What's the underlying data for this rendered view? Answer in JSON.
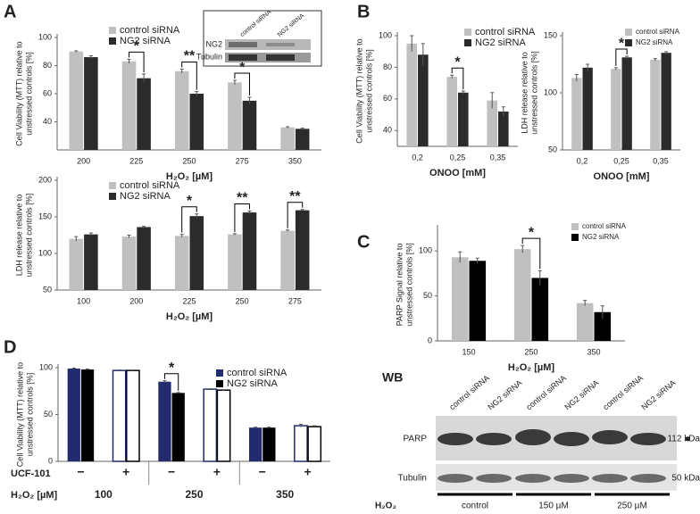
{
  "panels": [
    "A",
    "B",
    "C",
    "D"
  ],
  "inset_blot": {
    "lanes": [
      "control siRNA",
      "NG2 siRNA"
    ],
    "bands": [
      "NG2",
      "Tubulin"
    ]
  },
  "western_blot": {
    "title": "WB",
    "lanes": [
      "control siRNA",
      "NG2 siRNA",
      "control siRNA",
      "NG2 siRNA",
      "control siRNA",
      "NG2 siRNA"
    ],
    "bands": [
      "PARP",
      "Tubulin"
    ],
    "sizes": [
      "112 kDa",
      "50 kDa"
    ],
    "treatment_label": "H₂O₂",
    "groups": [
      "control",
      "150 µM",
      "250 µM"
    ]
  },
  "chart_data": [
    {
      "type": "bar",
      "ylabel": [
        "Cell Viability (MTT) relative to",
        "unstressed controls [%]"
      ],
      "xlabel": "H₂O₂ [µM]",
      "categories": [
        "200",
        "225",
        "250",
        "275",
        "350"
      ],
      "series": [
        {
          "name": "control siRNA",
          "color": "#c0c0c0",
          "values": [
            90,
            83,
            76,
            68,
            36
          ],
          "errors": [
            0.5,
            1.5,
            1.5,
            1.5,
            0.5
          ]
        },
        {
          "name": "NG2 siRNA",
          "color": "#2b2b2b",
          "values": [
            86,
            71,
            60,
            55,
            35
          ],
          "errors": [
            1,
            3,
            1.5,
            2.5,
            0.5
          ]
        }
      ],
      "ylim": [
        20,
        100
      ],
      "yticks": [
        40,
        60,
        80,
        100
      ],
      "significance": [
        null,
        "*",
        "**",
        "*",
        null
      ]
    },
    {
      "type": "bar",
      "ylabel": [
        "LDH release relative to",
        "unstressed controls [%]"
      ],
      "xlabel": "H₂O₂ [µM]",
      "categories": [
        "100",
        "200",
        "225",
        "250",
        "275"
      ],
      "series": [
        {
          "name": "control siRNA",
          "color": "#c0c0c0",
          "values": [
            120,
            123,
            124,
            126,
            131
          ],
          "errors": [
            3,
            2,
            2,
            1,
            1
          ]
        },
        {
          "name": "NG2 siRNA",
          "color": "#2b2b2b",
          "values": [
            126,
            136,
            151,
            156,
            159
          ],
          "errors": [
            2,
            1,
            3,
            2,
            1
          ]
        }
      ],
      "ylim": [
        50,
        200
      ],
      "yticks": [
        50,
        100,
        150,
        200
      ],
      "significance": [
        null,
        null,
        "*",
        "**",
        "**"
      ]
    },
    {
      "type": "bar",
      "ylabel": [
        "Cell Viability (MTT) relative to",
        "unstressed controls [%]"
      ],
      "xlabel": "ONOO [mM]",
      "categories": [
        "0,2",
        "0,25",
        "0,35"
      ],
      "series": [
        {
          "name": "control siRNA",
          "color": "#c0c0c0",
          "values": [
            95,
            74,
            59
          ],
          "errors": [
            5,
            1,
            5
          ]
        },
        {
          "name": "NG2 siRNA",
          "color": "#2b2b2b",
          "values": [
            88,
            64,
            52
          ],
          "errors": [
            7,
            1,
            3
          ]
        }
      ],
      "ylim": [
        30,
        100
      ],
      "yticks": [
        40,
        60,
        80,
        100
      ],
      "significance": [
        null,
        "*",
        null
      ]
    },
    {
      "type": "bar",
      "ylabel": [
        "LDH release relative to",
        "unstressed controls [%]"
      ],
      "xlabel": "ONOO [mM]",
      "categories": [
        "0,2",
        "0,25",
        "0,35"
      ],
      "series": [
        {
          "name": "control siRNA",
          "color": "#c0c0c0",
          "values": [
            113,
            121,
            129
          ],
          "errors": [
            3,
            1,
            1
          ]
        },
        {
          "name": "NG2 siRNA",
          "color": "#2b2b2b",
          "values": [
            122,
            131,
            135
          ],
          "errors": [
            3,
            1,
            1
          ]
        }
      ],
      "ylim": [
        50,
        150
      ],
      "yticks": [
        50,
        100,
        150
      ],
      "significance": [
        null,
        "*",
        null
      ]
    },
    {
      "type": "bar",
      "ylabel": [
        "PARP Signal relative to",
        "unstressed controls [%]"
      ],
      "xlabel": "H₂O₂ [µM]",
      "categories": [
        "150",
        "250",
        "350"
      ],
      "series": [
        {
          "name": "control siRNA",
          "color": "#c0c0c0",
          "values": [
            93,
            102,
            42
          ],
          "errors": [
            6,
            4,
            3
          ]
        },
        {
          "name": "NG2 siRNA",
          "color": "#000000",
          "values": [
            89,
            70,
            32
          ],
          "errors": [
            3,
            8,
            7
          ]
        }
      ],
      "ylim": [
        0,
        125
      ],
      "yticks": [
        0,
        50,
        100
      ],
      "significance": [
        null,
        "*",
        null
      ]
    },
    {
      "type": "bar",
      "ylabel": [
        "Cell Viability (MTT) relative to",
        "unstressed controls [%]"
      ],
      "categories": [
        "−",
        "+",
        "−",
        "+",
        "−",
        "+"
      ],
      "hollow": [
        false,
        true,
        false,
        true,
        false,
        true
      ],
      "groups": [
        "100",
        "250",
        "350"
      ],
      "row_label": "UCF-101",
      "group_label": "H₂O₂ [µM]",
      "series": [
        {
          "name": "control siRNA",
          "color": "#232a6e",
          "values": [
            99,
            97,
            85,
            77,
            36,
            38
          ],
          "errors": [
            0.5,
            0.5,
            1,
            0.5,
            0.5,
            1.5
          ]
        },
        {
          "name": "NG2 siRNA",
          "color": "#000000",
          "values": [
            98,
            97,
            73,
            76,
            36,
            37
          ],
          "errors": [
            0.5,
            0.5,
            0.5,
            0.5,
            0.5,
            1
          ]
        }
      ],
      "ylim": [
        0,
        100
      ],
      "yticks": [
        0,
        50,
        100
      ],
      "significance": [
        null,
        null,
        "*",
        null,
        null,
        null
      ]
    }
  ]
}
